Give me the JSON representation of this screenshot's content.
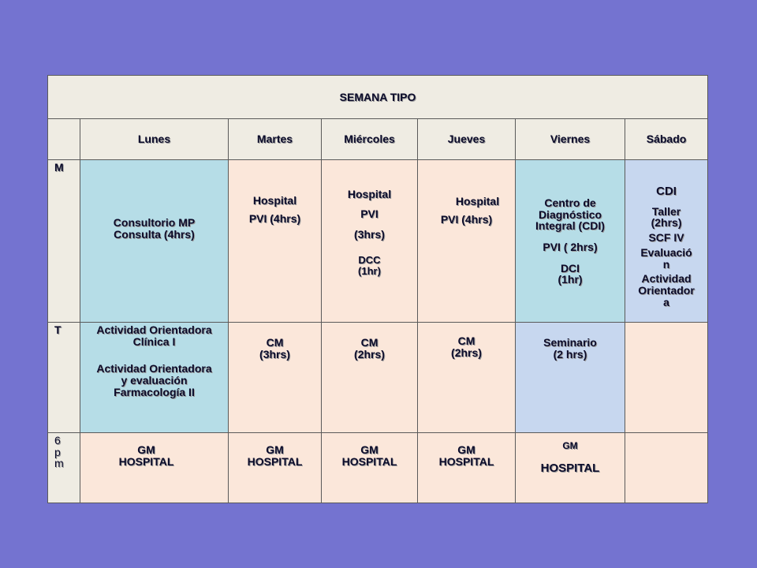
{
  "title": "SEMANA TIPO",
  "days": [
    "Lunes",
    "Martes",
    "Miércoles",
    "Jueves",
    "Viernes",
    "Sábado"
  ],
  "rows": {
    "m": {
      "label": "M",
      "lunes": [
        "Consultorio MP",
        "Consulta (4hrs)"
      ],
      "martes": [
        "Hospital",
        "PVI (4hrs)"
      ],
      "miercoles": [
        "Hospital",
        "PVI",
        "(3hrs)",
        "DCC",
        "(1hr)"
      ],
      "jueves": [
        "Hospital",
        "PVI (4hrs)"
      ],
      "viernes": [
        "Centro  de",
        "Diagnóstico",
        "Integral (CDI)",
        "PVI ( 2hrs)",
        "DCI",
        "(1hr)"
      ],
      "sabado": [
        "CDI",
        "Taller",
        "(2hrs)",
        "SCF IV",
        "Evaluació",
        "n",
        "Actividad",
        "Orientador",
        "a"
      ]
    },
    "t": {
      "label": "T",
      "lunes": [
        "Actividad Orientadora",
        "Clínica I",
        "Actividad Orientadora",
        "y evaluación",
        "Farmacología II"
      ],
      "martes": [
        "CM",
        "(3hrs)"
      ],
      "miercoles": [
        "CM",
        "(2hrs)"
      ],
      "jueves": [
        "CM",
        "(2hrs)"
      ],
      "viernes": [
        "Seminario",
        "(2 hrs)"
      ],
      "sabado": []
    },
    "pm": {
      "label": [
        "6",
        "p",
        "m"
      ],
      "lunes": [
        "GM",
        "HOSPITAL"
      ],
      "martes": [
        "GM",
        "HOSPITAL"
      ],
      "miercoles": [
        "GM",
        "HOSPITAL"
      ],
      "jueves": [
        "GM",
        "HOSPITAL"
      ],
      "viernes": [
        "GM",
        "HOSPITAL"
      ],
      "sabado": []
    }
  }
}
